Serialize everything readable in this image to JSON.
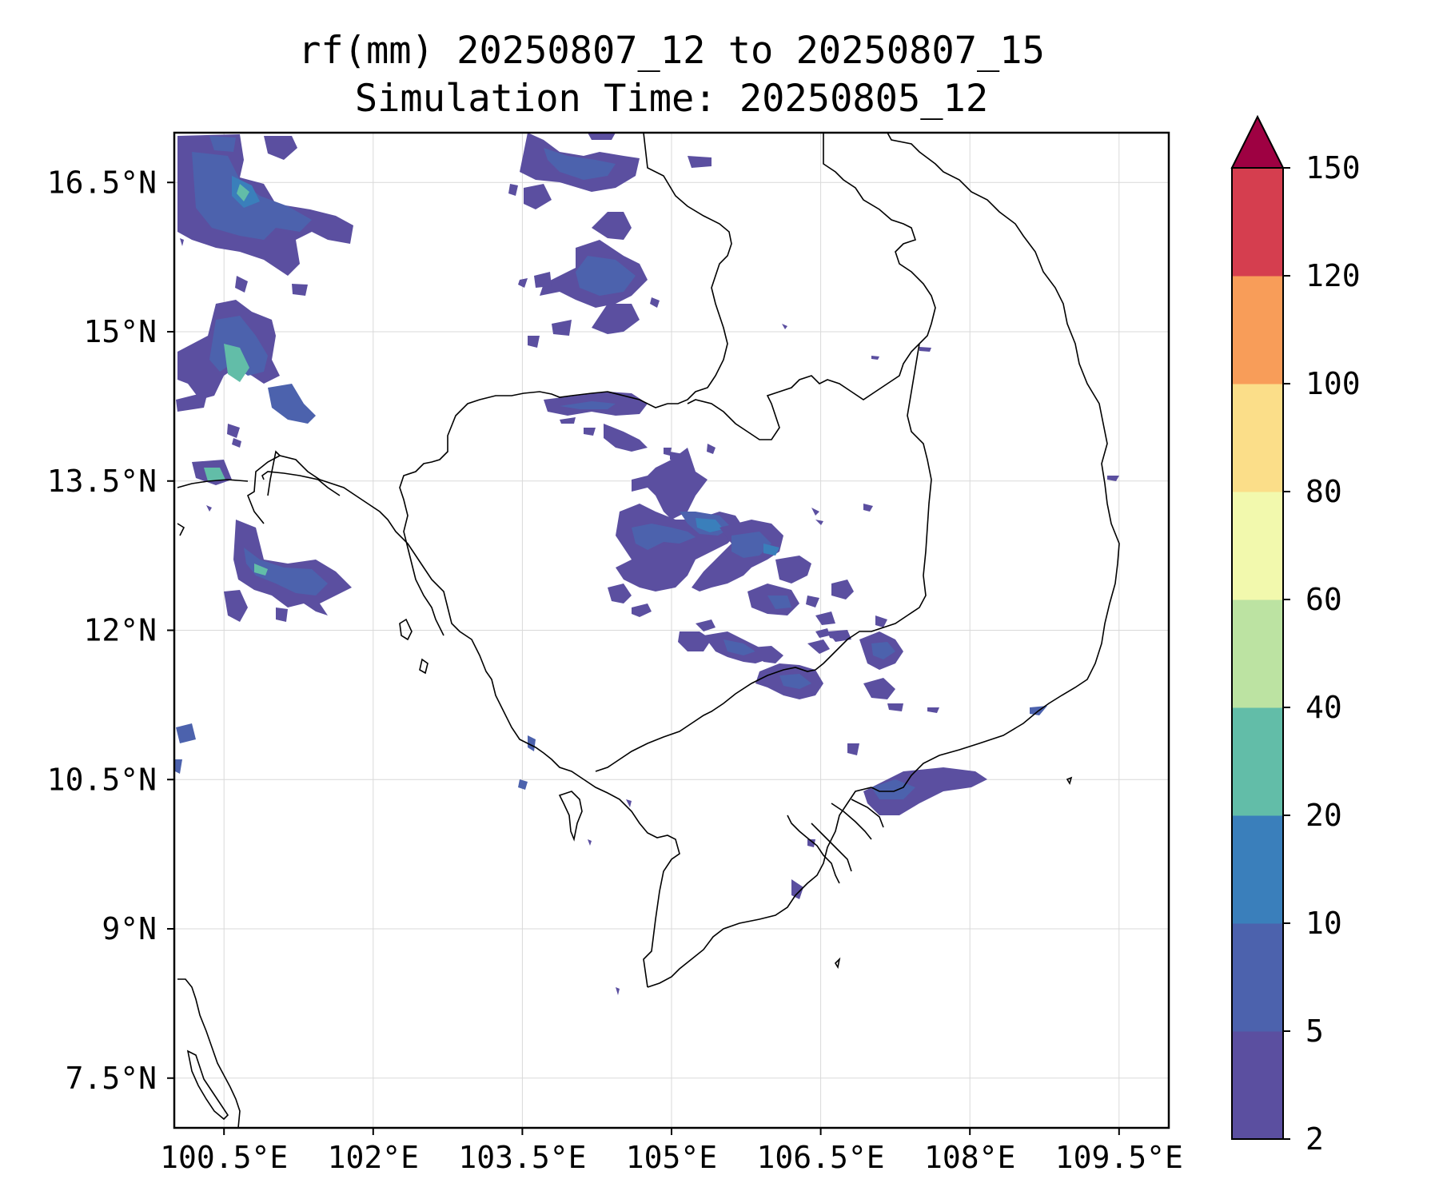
{
  "title": {
    "line1": "rf(mm) 20250807_12 to 20250807_15",
    "line2": "Simulation Time: 20250805_12"
  },
  "map": {
    "lon_range": [
      100.0,
      110.0
    ],
    "lat_range": [
      7.0,
      17.0
    ],
    "x_ticks": [
      "100.5°E",
      "102°E",
      "103.5°E",
      "105°E",
      "106.5°E",
      "108°E",
      "109.5°E"
    ],
    "x_tick_values": [
      100.5,
      102.0,
      103.5,
      105.0,
      106.5,
      108.0,
      109.5
    ],
    "y_ticks": [
      "16.5°N",
      "15°N",
      "13.5°N",
      "12°N",
      "10.5°N",
      "9°N",
      "7.5°N"
    ],
    "y_tick_values": [
      16.5,
      15.0,
      13.5,
      12.0,
      10.5,
      9.0,
      7.5
    ],
    "gridlines": true,
    "field": "rainfall (mm)"
  },
  "colorbar": {
    "levels": [
      "2",
      "5",
      "10",
      "20",
      "40",
      "60",
      "80",
      "100",
      "120",
      "150"
    ],
    "colors": [
      "#5b4fa0",
      "#4c62ad",
      "#3a7fbb",
      "#62bda8",
      "#bce3a2",
      "#f2f9ad",
      "#fbde89",
      "#f89d59",
      "#d53e4f",
      "#9e0142"
    ],
    "extend": "max"
  }
}
